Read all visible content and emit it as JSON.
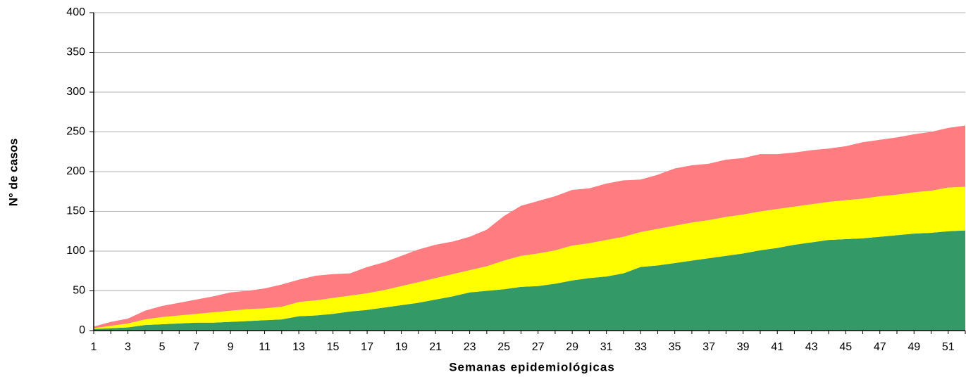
{
  "chart_data": {
    "type": "stacked_area",
    "x_label": "Semanas epidemiológicas",
    "y_label": "N° de casos",
    "categories": [
      "1",
      null,
      "3",
      null,
      "5",
      null,
      "7",
      null,
      "9",
      null,
      "11",
      null,
      "13",
      null,
      "15",
      null,
      "17",
      null,
      "19",
      null,
      "21",
      null,
      "23",
      null,
      "25",
      null,
      "27",
      null,
      "29",
      null,
      "31",
      null,
      "33",
      null,
      "35",
      null,
      "37",
      null,
      "39",
      null,
      "41",
      null,
      "43",
      null,
      "45",
      null,
      "47",
      null,
      "49",
      null,
      "51",
      null
    ],
    "series": [
      {
        "color": "#339966",
        "values": [
          2,
          3,
          4,
          7,
          8,
          9,
          10,
          10,
          11,
          12,
          13,
          14,
          18,
          19,
          21,
          24,
          26,
          29,
          32,
          35,
          39,
          43,
          48,
          50,
          52,
          55,
          56,
          59,
          63,
          66,
          68,
          72,
          80,
          82,
          85,
          88,
          91,
          94,
          97,
          101,
          104,
          108,
          111,
          114,
          115,
          116,
          118,
          120,
          122,
          123,
          125,
          126
        ]
      },
      {
        "color": "#ffff00",
        "values": [
          1,
          3,
          5,
          7,
          9,
          10,
          11,
          13,
          14,
          15,
          15,
          16,
          18,
          19,
          20,
          20,
          21,
          22,
          24,
          26,
          27,
          28,
          28,
          31,
          36,
          39,
          41,
          42,
          44,
          44,
          46,
          46,
          44,
          46,
          47,
          48,
          48,
          49,
          49,
          49,
          49,
          48,
          48,
          48,
          49,
          50,
          51,
          51,
          52,
          53,
          55,
          55
        ]
      },
      {
        "color": "#ff7c80",
        "values": [
          2,
          5,
          6,
          11,
          14,
          16,
          18,
          20,
          23,
          23,
          25,
          28,
          28,
          31,
          30,
          28,
          33,
          35,
          38,
          41,
          42,
          41,
          42,
          46,
          56,
          63,
          66,
          68,
          70,
          69,
          71,
          71,
          66,
          68,
          72,
          72,
          71,
          72,
          71,
          72,
          69,
          68,
          68,
          67,
          68,
          71,
          71,
          72,
          73,
          74,
          75,
          77
        ]
      }
    ],
    "ylim": [
      0,
      400
    ],
    "yticks": [
      0,
      50,
      100,
      150,
      200,
      250,
      300,
      350,
      400
    ],
    "grid": true
  }
}
